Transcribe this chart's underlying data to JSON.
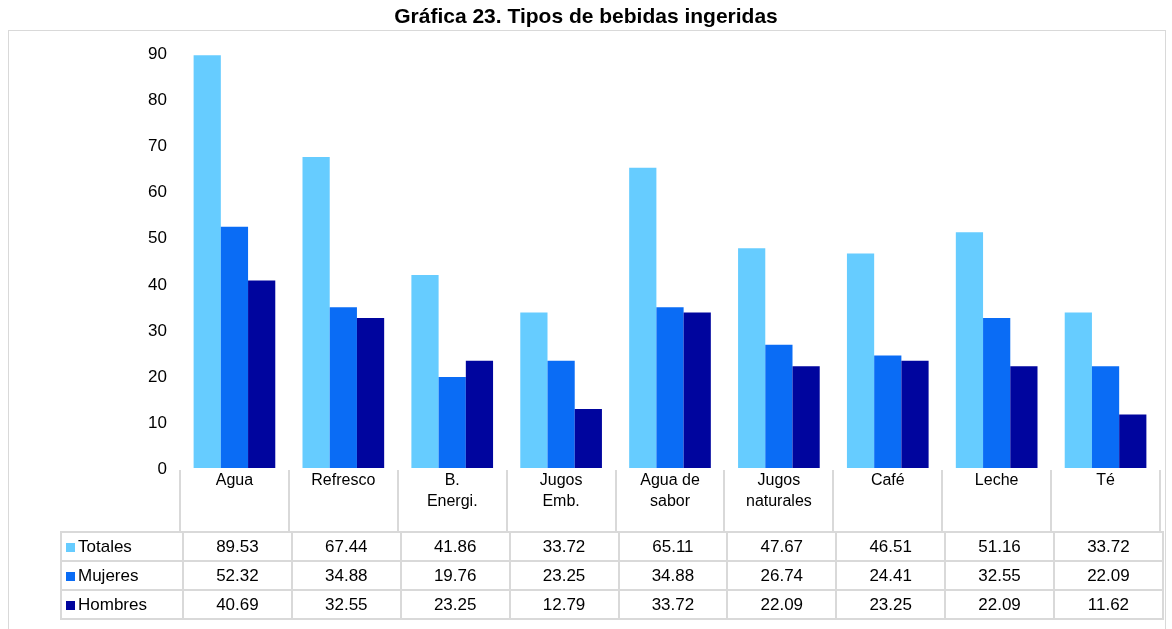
{
  "chart_data": {
    "type": "bar",
    "title": "Gráfica 23. Tipos de bebidas ingeridas",
    "categories": [
      "Agua",
      "Refresco",
      "B. Energi.",
      "Jugos Emb.",
      "Agua de sabor",
      "Jugos naturales",
      "Café",
      "Leche",
      "Té"
    ],
    "series": [
      {
        "name": "Totales",
        "color": "#66ccff",
        "values": [
          89.53,
          67.44,
          41.86,
          33.72,
          65.11,
          47.67,
          46.51,
          51.16,
          33.72
        ]
      },
      {
        "name": "Mujeres",
        "color": "#0a6cf5",
        "values": [
          52.32,
          34.88,
          19.76,
          23.25,
          34.88,
          26.74,
          24.41,
          32.55,
          22.09
        ]
      },
      {
        "name": "Hombres",
        "color": "#00059e",
        "values": [
          40.69,
          32.55,
          23.25,
          12.79,
          33.72,
          22.09,
          23.25,
          22.09,
          11.62
        ]
      }
    ],
    "ylim": [
      0,
      95
    ],
    "yticks": [
      0,
      10,
      20,
      30,
      40,
      50,
      60,
      70,
      80,
      90
    ],
    "grid": false,
    "legend": "bottom",
    "data_labels": true
  }
}
